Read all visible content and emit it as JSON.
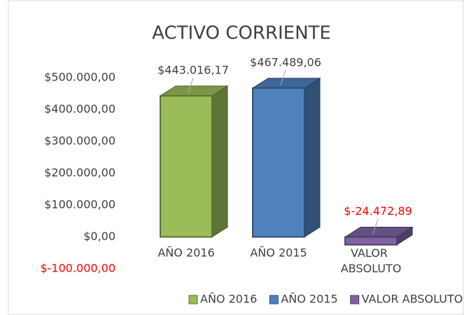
{
  "chart_data": {
    "type": "bar3d",
    "title": "ACTIVO CORRIENTE",
    "categories": [
      "AÑO 2016",
      "AÑO 2015",
      "VALOR ABSOLUTO"
    ],
    "values": [
      443016.17,
      467489.06,
      -24472.89
    ],
    "value_labels": [
      "$443.016,17",
      "$467.489,06",
      "$-24.472,89"
    ],
    "colors": [
      "#9bbb59",
      "#4f81bd",
      "#8064a2"
    ],
    "negative_color": "#ff0000",
    "ylim": [
      -100000,
      500000
    ],
    "yticks": [
      {
        "value": -100000,
        "label": "$-100.000,00"
      },
      {
        "value": 0,
        "label": "$0,00"
      },
      {
        "value": 100000,
        "label": "$100.000,00"
      },
      {
        "value": 200000,
        "label": "$200.000,00"
      },
      {
        "value": 300000,
        "label": "$300.000,00"
      },
      {
        "value": 400000,
        "label": "$400.000,00"
      },
      {
        "value": 500000,
        "label": "$500.000,00"
      }
    ],
    "grid": false,
    "legend": "bottom"
  }
}
